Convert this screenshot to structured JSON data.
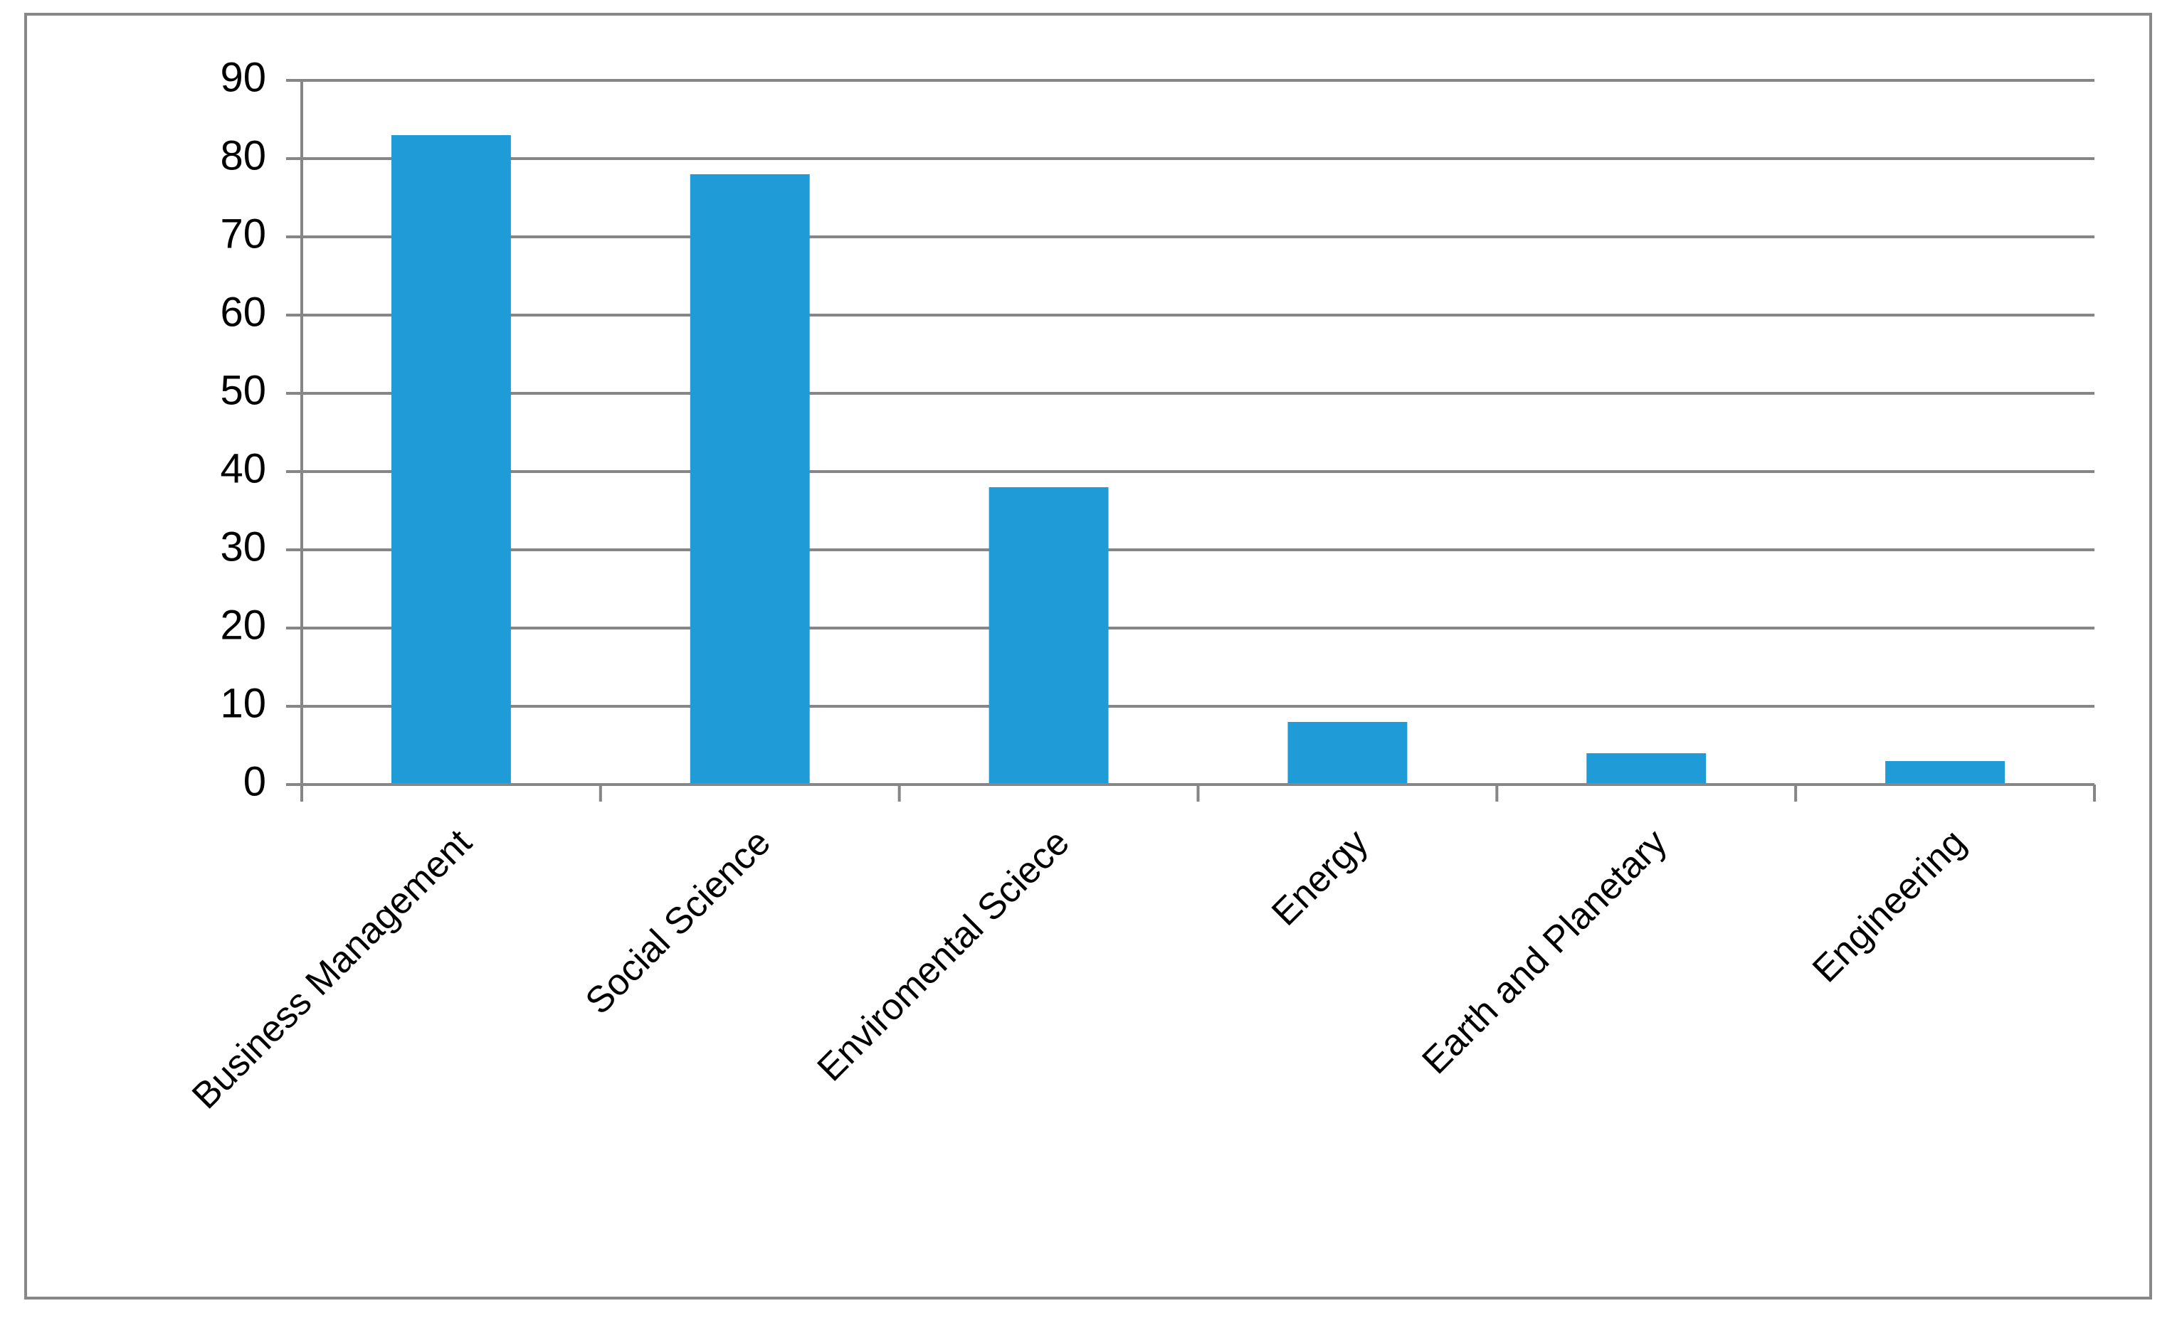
{
  "chart_data": {
    "type": "bar",
    "categories": [
      "Business Management",
      "Social Science",
      "Enviromental Sciece",
      "Energy",
      "Earth and Planetary",
      "Engineering"
    ],
    "values": [
      83,
      78,
      38,
      8,
      4,
      3
    ],
    "color": "#1f9cd8",
    "ylim": [
      0,
      90
    ],
    "yticks": [
      0,
      10,
      20,
      30,
      40,
      50,
      60,
      70,
      80,
      90
    ],
    "grid": true
  }
}
